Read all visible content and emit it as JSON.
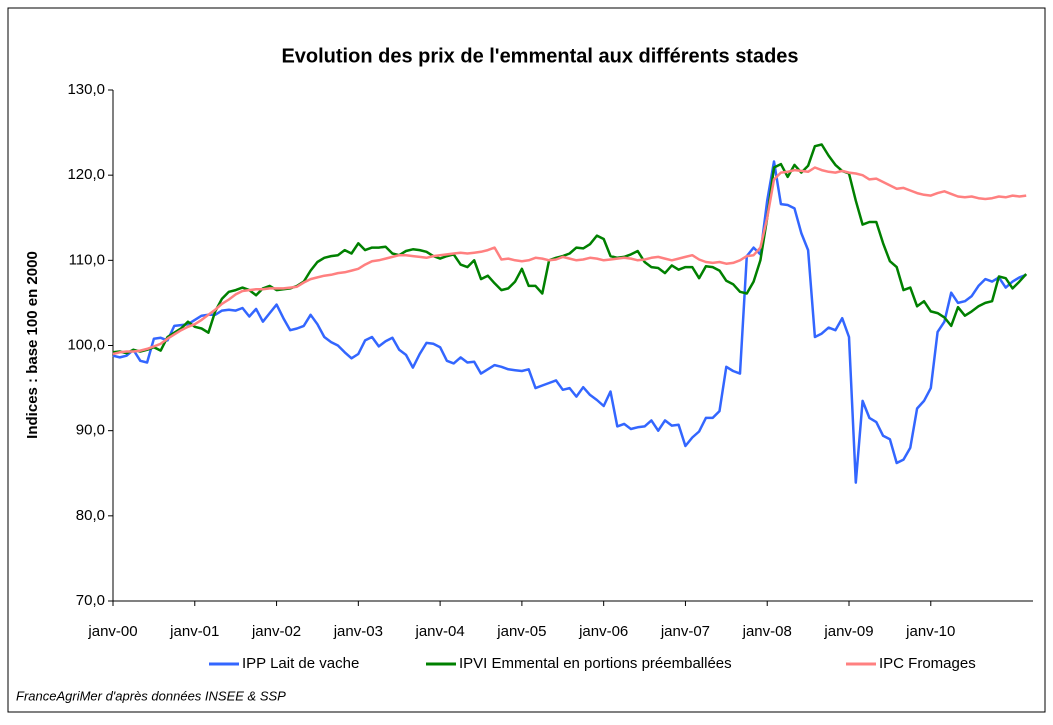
{
  "chart_data": {
    "type": "line",
    "title": "Evolution des prix de l'emmental aux différents stades",
    "y_label": "Indices : base 100 en 2000",
    "source": "FranceAgriMer d'après données INSEE & SSP",
    "categories": [
      "janv-00",
      null,
      null,
      null,
      null,
      null,
      null,
      null,
      null,
      null,
      null,
      null,
      "janv-01",
      null,
      null,
      null,
      null,
      null,
      null,
      null,
      null,
      null,
      null,
      null,
      "janv-02",
      null,
      null,
      null,
      null,
      null,
      null,
      null,
      null,
      null,
      null,
      null,
      "janv-03",
      null,
      null,
      null,
      null,
      null,
      null,
      null,
      null,
      null,
      null,
      null,
      "janv-04",
      null,
      null,
      null,
      null,
      null,
      null,
      null,
      null,
      null,
      null,
      null,
      "janv-05",
      null,
      null,
      null,
      null,
      null,
      null,
      null,
      null,
      null,
      null,
      null,
      "janv-06",
      null,
      null,
      null,
      null,
      null,
      null,
      null,
      null,
      null,
      null,
      null,
      "janv-07",
      null,
      null,
      null,
      null,
      null,
      null,
      null,
      null,
      null,
      null,
      null,
      "janv-08",
      null,
      null,
      null,
      null,
      null,
      null,
      null,
      null,
      null,
      null,
      null,
      "janv-09",
      null,
      null,
      null,
      null,
      null,
      null,
      null,
      null,
      null,
      null,
      null,
      "janv-10",
      null,
      null,
      null,
      null,
      null,
      null,
      null,
      null,
      null,
      null,
      null,
      null,
      null,
      null
    ],
    "ylim": [
      70,
      130
    ],
    "yticks": [
      {
        "value": 70,
        "label": "70,0"
      },
      {
        "value": 80,
        "label": "80,0"
      },
      {
        "value": 90,
        "label": "90,0"
      },
      {
        "value": 100,
        "label": "100,0"
      },
      {
        "value": 110,
        "label": "110,0"
      },
      {
        "value": 120,
        "label": "120,0"
      },
      {
        "value": 130,
        "label": "130,0"
      }
    ],
    "grid": false,
    "legend": "bottom",
    "series": [
      {
        "name": "IPP Lait de vache",
        "color": "#3366ff",
        "values": [
          98.8,
          98.6,
          98.8,
          99.5,
          98.2,
          98.0,
          100.8,
          100.9,
          100.6,
          102.3,
          102.4,
          102.5,
          103.0,
          103.5,
          103.6,
          103.6,
          104.1,
          104.2,
          104.1,
          104.4,
          103.4,
          104.3,
          102.8,
          103.8,
          104.8,
          103.2,
          101.8,
          102.0,
          102.3,
          103.6,
          102.5,
          101.0,
          100.4,
          100.0,
          99.2,
          98.5,
          99.0,
          100.6,
          101.0,
          99.9,
          100.5,
          100.9,
          99.5,
          98.9,
          97.4,
          99.0,
          100.3,
          100.2,
          99.8,
          98.2,
          97.9,
          98.6,
          98.0,
          98.1,
          96.7,
          97.2,
          97.7,
          97.5,
          97.2,
          97.1,
          97.0,
          97.2,
          95.0,
          95.3,
          95.6,
          95.9,
          94.8,
          95.0,
          94.0,
          95.1,
          94.2,
          93.6,
          92.9,
          94.6,
          90.5,
          90.8,
          90.2,
          90.4,
          90.5,
          91.2,
          90.0,
          91.2,
          90.6,
          90.7,
          88.2,
          89.2,
          89.9,
          91.5,
          91.5,
          92.3,
          97.5,
          97.0,
          96.7,
          110.5,
          111.5,
          110.7,
          117.0,
          121.6,
          116.6,
          116.5,
          116.1,
          113.2,
          111.2,
          101.0,
          101.4,
          102.1,
          101.8,
          103.2,
          101.0,
          83.9,
          93.5,
          91.5,
          91.0,
          89.4,
          89.0,
          86.2,
          86.6,
          88.0,
          92.6,
          93.5,
          95.0,
          101.6,
          102.8,
          106.2,
          105.0,
          105.2,
          105.8,
          107.0,
          107.8,
          107.5,
          108.0,
          106.8,
          107.5,
          108.0,
          108.3
        ]
      },
      {
        "name": "IPVI Emmental en portions préemballées",
        "color": "#008000",
        "values": [
          99.2,
          99.3,
          99.1,
          99.5,
          99.3,
          99.5,
          99.8,
          99.4,
          101.0,
          101.5,
          102.0,
          102.8,
          102.2,
          102.0,
          101.5,
          104.0,
          105.5,
          106.3,
          106.5,
          106.8,
          106.5,
          105.9,
          106.7,
          107.0,
          106.5,
          106.6,
          106.7,
          107.0,
          107.5,
          108.8,
          109.8,
          110.3,
          110.5,
          110.6,
          111.2,
          110.8,
          112.0,
          111.2,
          111.5,
          111.5,
          111.6,
          110.8,
          110.6,
          111.1,
          111.3,
          111.2,
          111.0,
          110.5,
          110.2,
          110.5,
          110.7,
          109.5,
          109.2,
          110.0,
          107.8,
          108.2,
          107.3,
          106.5,
          106.7,
          107.5,
          109.0,
          107.0,
          107.0,
          106.1,
          110.0,
          110.3,
          110.5,
          110.8,
          111.5,
          111.4,
          111.9,
          112.9,
          112.5,
          110.5,
          110.3,
          110.4,
          110.7,
          111.1,
          109.8,
          109.2,
          109.1,
          108.5,
          109.4,
          108.9,
          109.2,
          109.2,
          107.9,
          109.3,
          109.2,
          108.8,
          107.6,
          107.2,
          106.3,
          106.1,
          107.5,
          110.0,
          115.0,
          120.9,
          121.3,
          119.8,
          121.2,
          120.3,
          121.1,
          123.4,
          123.6,
          122.3,
          121.2,
          120.5,
          120.2,
          117.0,
          114.2,
          114.5,
          114.5,
          112.0,
          109.9,
          109.2,
          106.5,
          106.8,
          104.6,
          105.2,
          104.0,
          103.8,
          103.3,
          102.3,
          104.5,
          103.5,
          104.0,
          104.6,
          105.0,
          105.2,
          108.1,
          107.9,
          106.7,
          107.5,
          108.4
        ]
      },
      {
        "name": "IPC Fromages",
        "color": "#ff8080",
        "values": [
          99.0,
          99.2,
          99.3,
          99.3,
          99.4,
          99.6,
          99.9,
          100.2,
          100.8,
          101.3,
          101.8,
          102.2,
          102.5,
          103.0,
          103.6,
          104.2,
          104.9,
          105.4,
          106.0,
          106.4,
          106.5,
          106.6,
          106.6,
          106.7,
          106.7,
          106.7,
          106.8,
          106.9,
          107.4,
          107.8,
          108.0,
          108.2,
          108.3,
          108.5,
          108.6,
          108.8,
          109.0,
          109.5,
          109.9,
          110.0,
          110.2,
          110.4,
          110.6,
          110.6,
          110.5,
          110.4,
          110.3,
          110.5,
          110.6,
          110.7,
          110.8,
          110.9,
          110.8,
          110.9,
          111.0,
          111.2,
          111.5,
          110.1,
          110.2,
          110.0,
          109.9,
          110.0,
          110.3,
          110.2,
          110.0,
          110.1,
          110.4,
          110.2,
          110.0,
          110.1,
          110.3,
          110.2,
          110.0,
          110.1,
          110.2,
          110.3,
          110.2,
          110.0,
          110.1,
          110.3,
          110.4,
          110.2,
          110.0,
          110.2,
          110.4,
          110.6,
          110.1,
          109.8,
          109.7,
          109.8,
          109.6,
          109.7,
          110.0,
          110.5,
          110.6,
          111.5,
          115.0,
          119.5,
          120.3,
          120.4,
          120.6,
          120.5,
          120.4,
          120.9,
          120.6,
          120.4,
          120.3,
          120.5,
          120.3,
          120.2,
          120.0,
          119.5,
          119.6,
          119.2,
          118.8,
          118.4,
          118.5,
          118.2,
          117.9,
          117.7,
          117.6,
          117.9,
          118.1,
          117.8,
          117.5,
          117.4,
          117.5,
          117.3,
          117.2,
          117.3,
          117.5,
          117.4,
          117.6,
          117.5,
          117.6
        ]
      }
    ]
  }
}
